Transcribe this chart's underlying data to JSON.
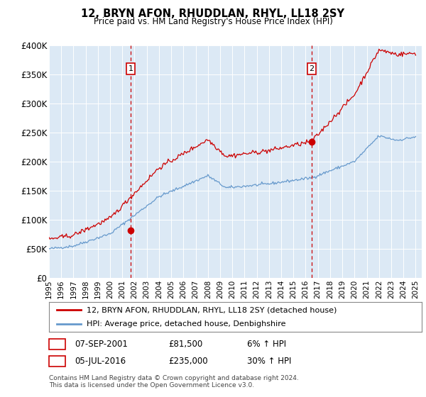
{
  "title": "12, BRYN AFON, RHUDDLAN, RHYL, LL18 2SY",
  "subtitle": "Price paid vs. HM Land Registry's House Price Index (HPI)",
  "background_color": "#dce9f5",
  "plot_bg_color": "#dce9f5",
  "ylim": [
    0,
    400000
  ],
  "yticks": [
    0,
    50000,
    100000,
    150000,
    200000,
    250000,
    300000,
    350000,
    400000
  ],
  "ytick_labels": [
    "£0",
    "£50K",
    "£100K",
    "£150K",
    "£200K",
    "£250K",
    "£300K",
    "£350K",
    "£400K"
  ],
  "xlim_start": 1995.0,
  "xlim_end": 2025.5,
  "sale1_date": 2001.68,
  "sale1_price": 81500,
  "sale1_label": "1",
  "sale1_text": "07-SEP-2001",
  "sale1_amount": "£81,500",
  "sale1_hpi": "6% ↑ HPI",
  "sale2_date": 2016.5,
  "sale2_price": 235000,
  "sale2_label": "2",
  "sale2_text": "05-JUL-2016",
  "sale2_amount": "£235,000",
  "sale2_hpi": "30% ↑ HPI",
  "legend_line1": "12, BRYN AFON, RHUDDLAN, RHYL, LL18 2SY (detached house)",
  "legend_line2": "HPI: Average price, detached house, Denbighshire",
  "footer1": "Contains HM Land Registry data © Crown copyright and database right 2024.",
  "footer2": "This data is licensed under the Open Government Licence v3.0.",
  "red_color": "#cc0000",
  "blue_color": "#6699cc",
  "dashed_color": "#cc0000"
}
